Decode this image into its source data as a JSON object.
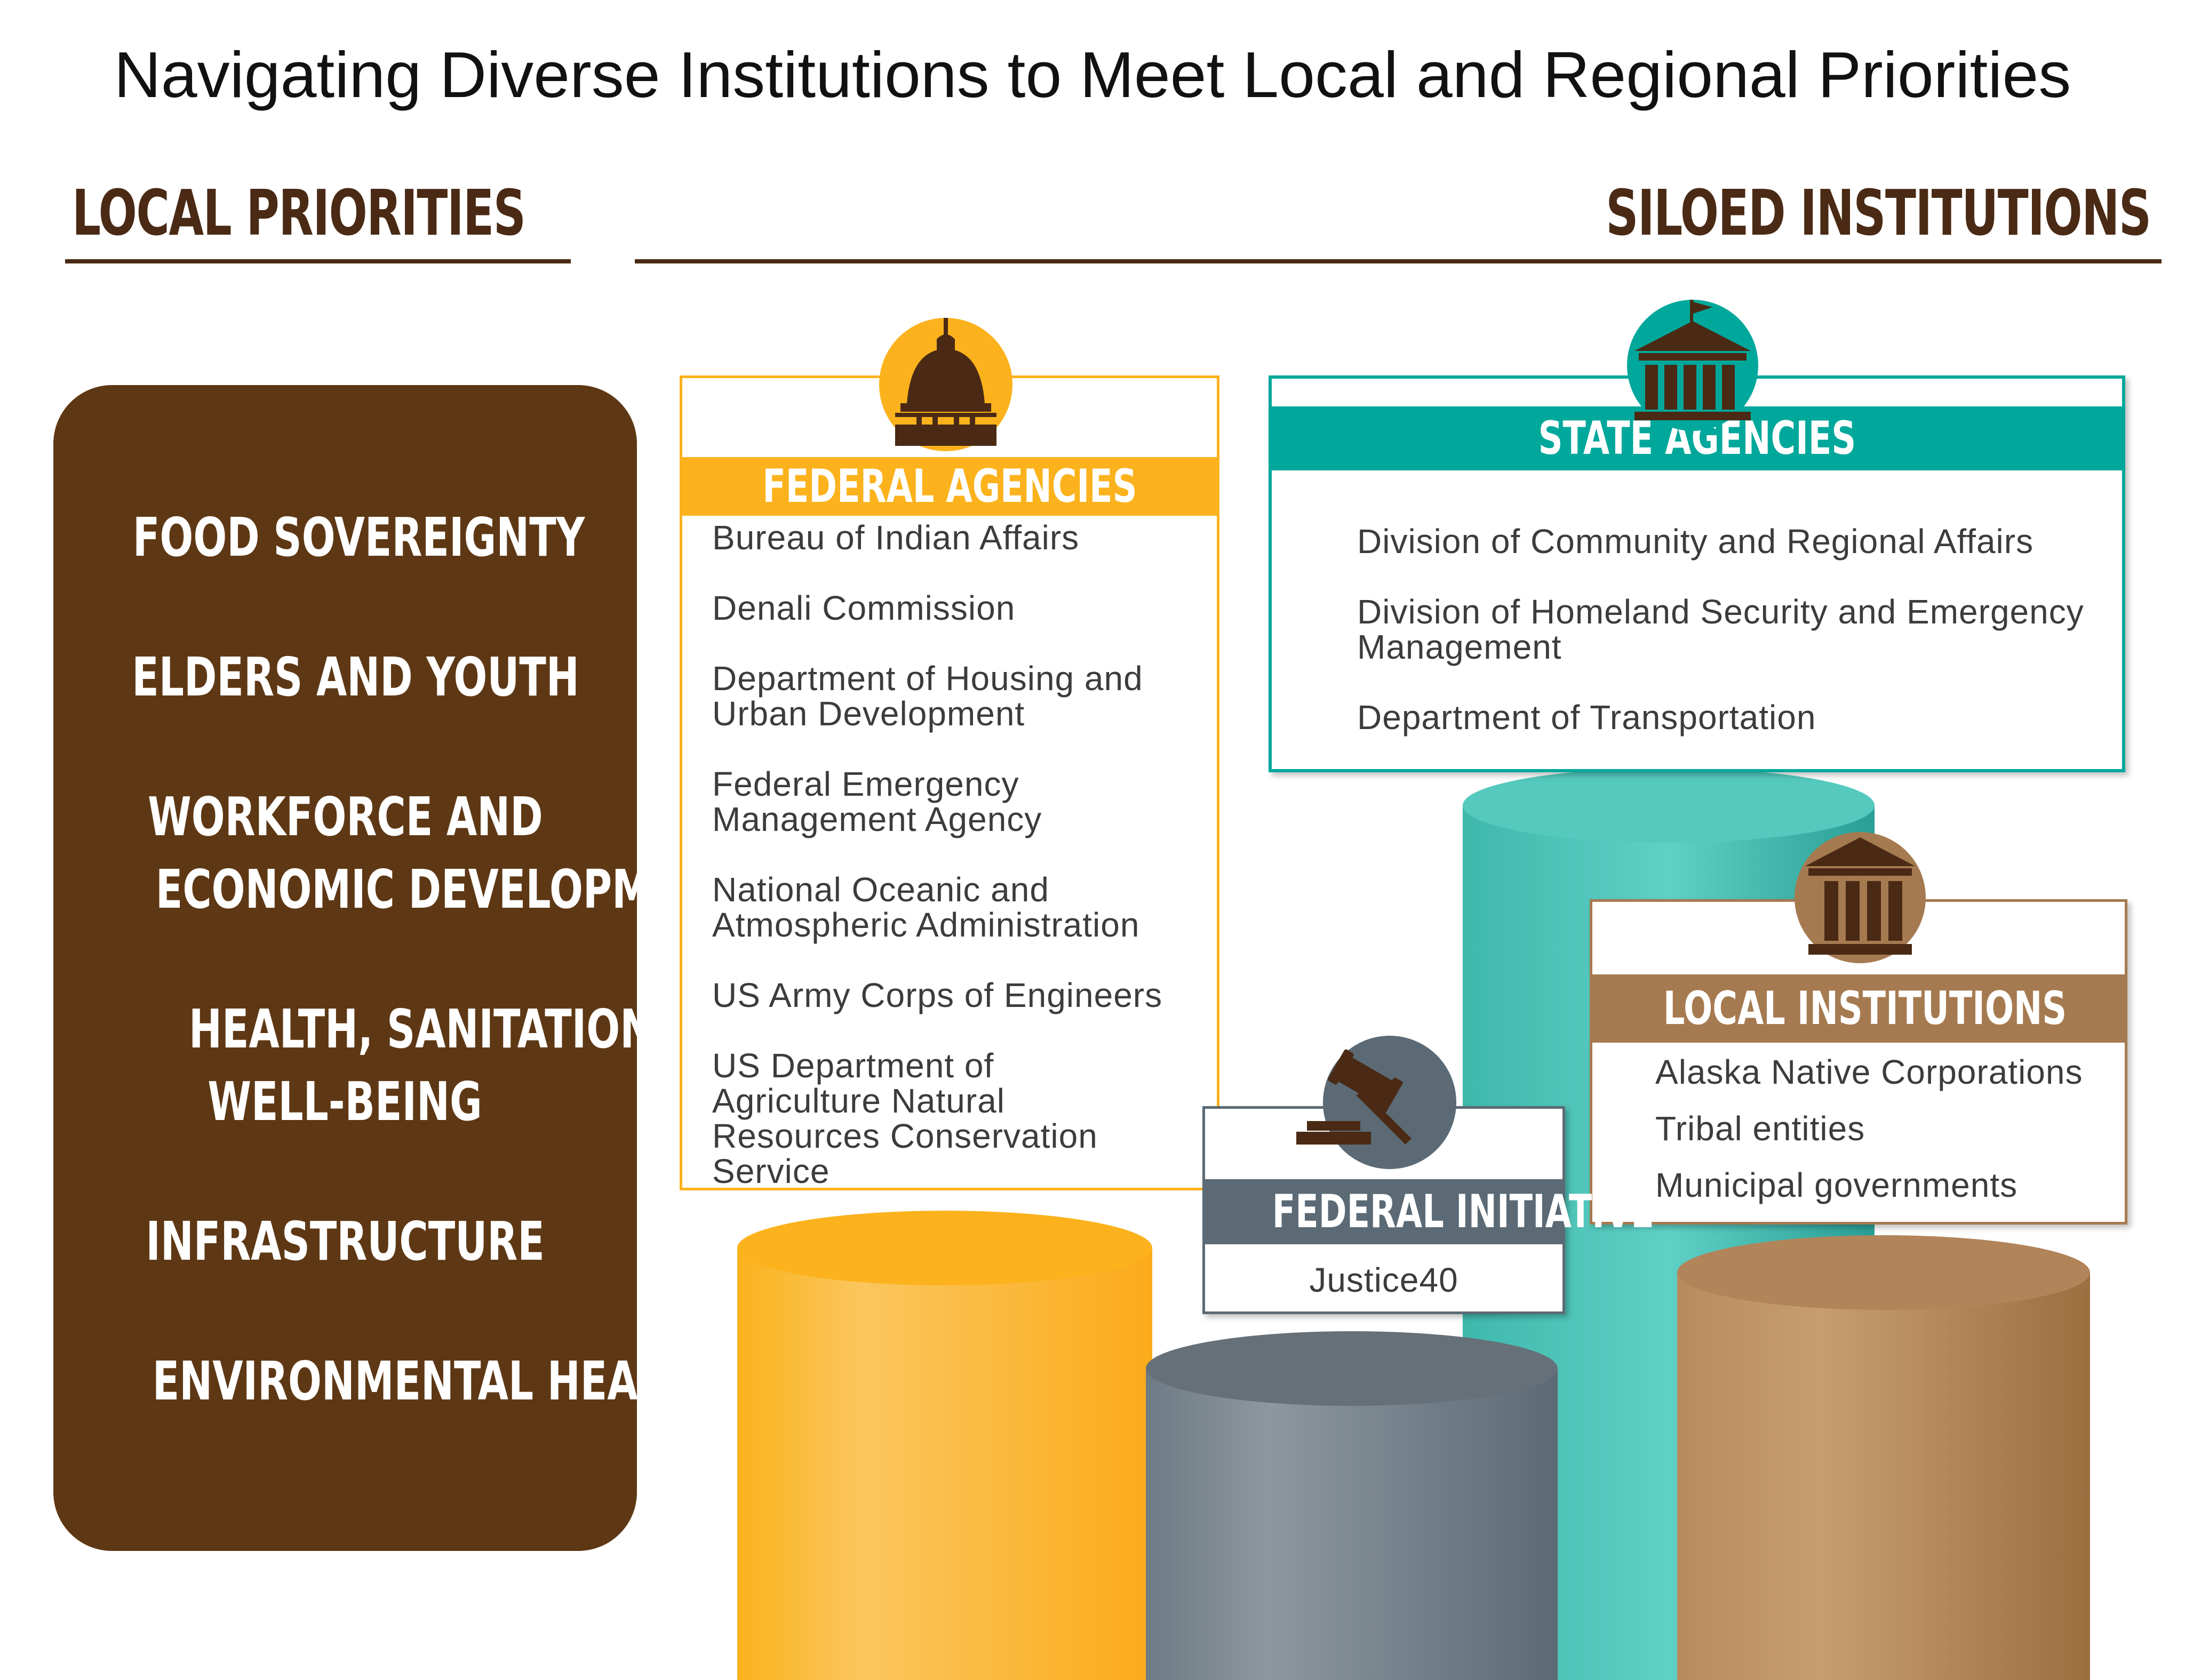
{
  "title": "Navigating Diverse Institutions to Meet Local and Regional Priorities",
  "left_heading": "LOCAL PRIORITIES",
  "right_heading": "SILOED INSTITUTIONS",
  "priorities": [
    "FOOD SOVEREIGNTY",
    "ELDERS AND YOUTH",
    "WORKFORCE AND",
    "ECONOMIC DEVELOPMENT",
    "HEALTH, SANITATION, AND",
    "WELL-BEING",
    "INFRASTRUCTURE",
    "ENVIRONMENTAL HEALTH"
  ],
  "federal_agencies": {
    "title": "FEDERAL AGENCIES",
    "icon": "capitol-dome-icon",
    "color": "#fbb21c",
    "items": [
      "Bureau of Indian Affairs",
      "Denali Commission",
      "Department of Housing and",
      "Urban Development",
      "Federal Emergency",
      "Management Agency",
      "National Oceanic and",
      "Atmospheric Administration",
      "US Army Corps of Engineers",
      "US Department of",
      "Agriculture Natural",
      "Resources Conservation",
      "Service"
    ]
  },
  "state_agencies": {
    "title": "STATE AGENCIES",
    "icon": "state-capitol-flag-icon",
    "color": "#00a89b",
    "items": [
      "Division of Community and Regional Affairs",
      "Division of Homeland Security and Emergency",
      "Management",
      "Department of Transportation"
    ]
  },
  "local_institutions": {
    "title": "LOCAL INSTITUTIONS",
    "icon": "columned-building-icon",
    "color": "#a67a50",
    "items": [
      "Alaska Native Corporations",
      "Tribal entities",
      "Municipal governments"
    ]
  },
  "federal_initiative": {
    "title": "FEDERAL INITIATIVE",
    "icon": "gavel-icon",
    "color": "#5b6a75",
    "items": [
      "Justice40"
    ]
  }
}
